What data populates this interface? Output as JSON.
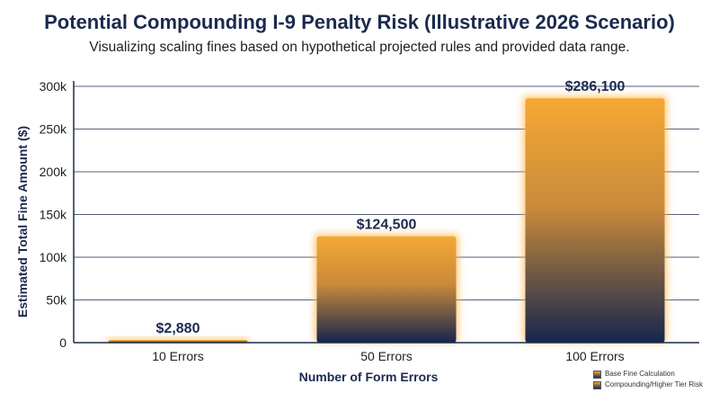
{
  "header": {
    "title": "Potential Compounding I-9 Penalty Risk (Illustrative 2026 Scenario)",
    "subtitle": "Visualizing scaling fines based on hypothetical projected rules and provided data range."
  },
  "colors": {
    "bar_top": "#f5a833",
    "bar_bottom": "#15254e",
    "glow": "#ffb347",
    "text": "#1b2a4e",
    "grid": "#1b2a4e"
  },
  "chart_data": {
    "type": "bar",
    "title": "Potential Compounding I-9 Penalty Risk (Illustrative 2026 Scenario)",
    "subtitle": "Visualizing scaling fines based on hypothetical projected rules and provided data range.",
    "categories": [
      "10 Errors",
      "50 Errors",
      "100 Errors"
    ],
    "values": [
      2880,
      124500,
      286100
    ],
    "data_labels": [
      "$2,880",
      "$124,500",
      "$286,100"
    ],
    "xlabel": "Number of Form Errors",
    "ylabel": "Estimated Total Fine Amount ($)",
    "ylim": [
      0,
      300000
    ],
    "yticks": [
      0,
      50000,
      100000,
      150000,
      200000,
      250000,
      300000
    ],
    "ytick_labels": [
      "0",
      "50k",
      "100k",
      "150k",
      "200k",
      "250k",
      "300k"
    ],
    "grid": true,
    "legend_position": "bottom-right",
    "legend": [
      "Base Fine Calculation",
      "Compounding/Higher Tier Risk"
    ]
  }
}
